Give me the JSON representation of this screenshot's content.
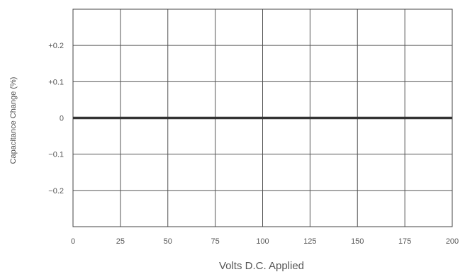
{
  "chart_data": {
    "type": "line",
    "title": "",
    "xlabel": "Volts D.C. Applied",
    "ylabel": "Capacitance Change (%)",
    "xlim": [
      0,
      200
    ],
    "ylim": [
      -0.3,
      0.3
    ],
    "grid": true,
    "x_ticks": [
      0,
      25,
      50,
      75,
      100,
      125,
      150,
      175,
      200
    ],
    "x_tick_labels": [
      "0",
      "25",
      "50",
      "75",
      "100",
      "125",
      "150",
      "175",
      "200"
    ],
    "y_ticks": [
      0.2,
      0.1,
      0,
      -0.1,
      -0.2
    ],
    "y_tick_labels": [
      "+0.2",
      "+0.1",
      "0",
      "−0.1",
      "−0.2"
    ],
    "series": [
      {
        "x": [
          0,
          200
        ],
        "y": [
          0,
          0
        ],
        "color": "#333333"
      }
    ]
  }
}
